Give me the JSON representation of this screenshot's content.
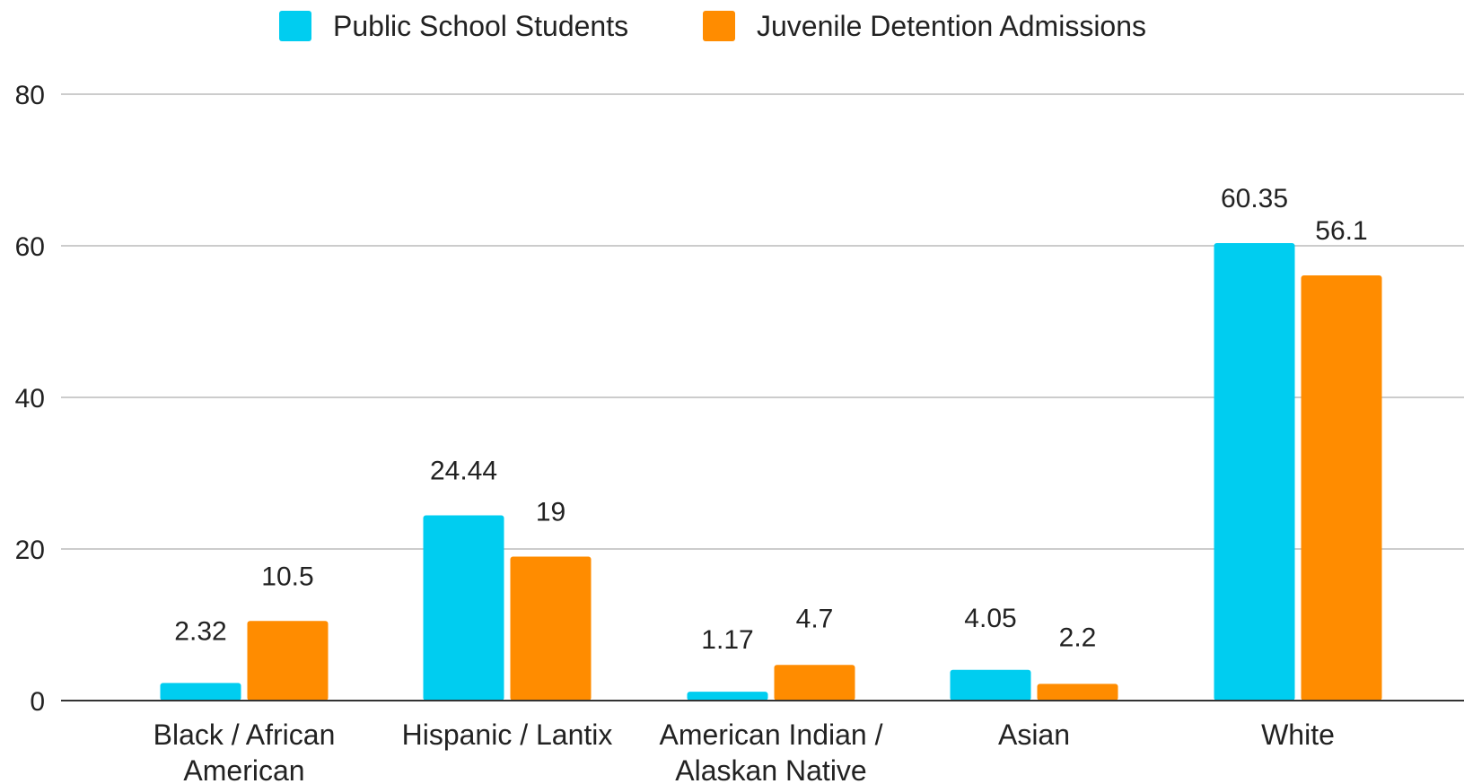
{
  "chart_data": {
    "type": "bar",
    "title": "",
    "xlabel": "",
    "ylabel": "",
    "categories": [
      "Black / African American",
      "Hispanic / Lantix",
      "American Indian / Alaskan Native",
      "Asian",
      "White"
    ],
    "category_lines": [
      [
        "Black / African",
        "American"
      ],
      [
        "Hispanic / Lantix"
      ],
      [
        "American Indian /",
        "Alaskan Native"
      ],
      [
        "Asian"
      ],
      [
        "White"
      ]
    ],
    "series": [
      {
        "name": "Public School Students",
        "color": "#00cdf0",
        "values": [
          2.32,
          24.44,
          1.17,
          4.05,
          60.35
        ],
        "labels": [
          "2.32",
          "24.44",
          "1.17",
          "4.05",
          "60.35"
        ]
      },
      {
        "name": "Juvenile Detention Admissions",
        "color": "#ff8c00",
        "values": [
          10.5,
          19,
          4.7,
          2.2,
          56.1
        ],
        "labels": [
          "10.5",
          "19",
          "4.7",
          "2.2",
          "56.1"
        ]
      }
    ],
    "ylim": [
      0,
      80
    ],
    "yticks": [
      0,
      20,
      40,
      60,
      80
    ],
    "ytick_labels": [
      "0",
      "20",
      "40",
      "60",
      "80"
    ],
    "grid": true,
    "legend_position": "top-center"
  }
}
